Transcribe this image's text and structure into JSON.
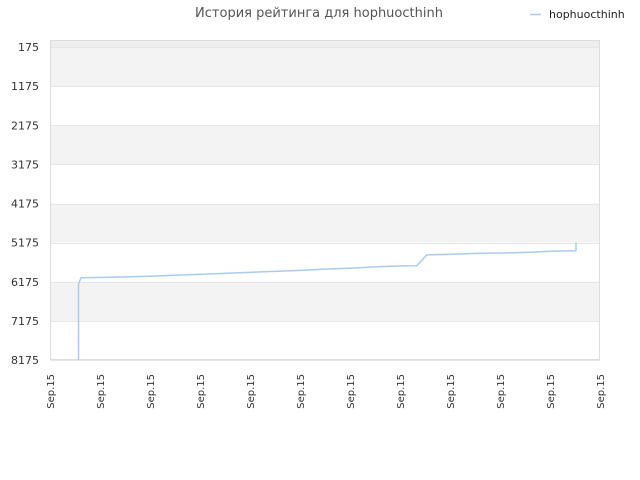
{
  "chart_data": {
    "type": "line",
    "title": "История рейтинга для hophuocthinh",
    "xlabel": "",
    "ylabel": "",
    "legend": {
      "placement": "top-right",
      "entries": [
        "hophuocthinh"
      ]
    },
    "y_axis": {
      "inverted": true,
      "range": [
        175,
        8175
      ],
      "ticks": [
        "175",
        "1175",
        "2175",
        "3175",
        "4175",
        "5175",
        "6175",
        "7175",
        "8175"
      ]
    },
    "x_axis": {
      "ticks": [
        "Sep.15",
        "Sep.15",
        "Sep.15",
        "Sep.15",
        "Sep.15",
        "Sep.15",
        "Sep.15",
        "Sep.15",
        "Sep.15",
        "Sep.15",
        "Sep.15",
        "Sep.15"
      ]
    },
    "grid": true,
    "colors": {
      "series": "#a8ccee",
      "band": "#f3f3f3",
      "grid": "#e6e6e6",
      "top_band": "#eeeeee"
    },
    "series": [
      {
        "name": "hophuocthinh",
        "points": [
          [
            0.0,
            8175
          ],
          [
            0.0,
            6235
          ],
          [
            0.1,
            6075
          ],
          [
            1.0,
            6065
          ],
          [
            2.0,
            6050
          ],
          [
            3.0,
            6030
          ],
          [
            4.0,
            6005
          ],
          [
            5.0,
            5985
          ],
          [
            6.0,
            5960
          ],
          [
            7.0,
            5930
          ],
          [
            8.0,
            5905
          ],
          [
            9.0,
            5880
          ],
          [
            10.0,
            5850
          ],
          [
            11.0,
            5825
          ],
          [
            12.0,
            5790
          ],
          [
            13.0,
            5770
          ],
          [
            13.6,
            5765
          ],
          [
            14.0,
            5490
          ],
          [
            15.0,
            5470
          ],
          [
            16.0,
            5450
          ],
          [
            17.0,
            5440
          ],
          [
            18.0,
            5425
          ],
          [
            19.0,
            5395
          ],
          [
            20.0,
            5385
          ],
          [
            20.0,
            5175
          ]
        ]
      }
    ]
  }
}
